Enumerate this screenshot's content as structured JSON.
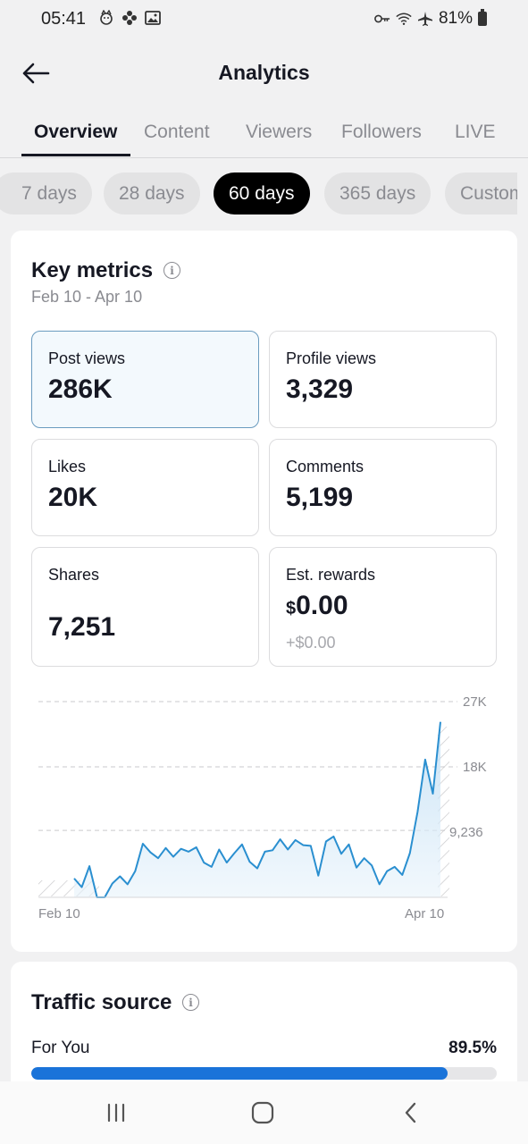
{
  "status_bar": {
    "time": "05:41",
    "battery": "81%",
    "left_icons": [
      "face-notification-icon",
      "flower-icon",
      "gallery-icon"
    ],
    "right_icons": [
      "key-icon",
      "wifi-icon",
      "airplane-icon",
      "battery-icon"
    ]
  },
  "header": {
    "title": "Analytics",
    "back_icon": "arrow-left-icon"
  },
  "tabs": [
    {
      "label": "Overview",
      "active": true
    },
    {
      "label": "Content",
      "active": false
    },
    {
      "label": "Viewers",
      "active": false
    },
    {
      "label": "Followers",
      "active": false
    },
    {
      "label": "LIVE",
      "active": false
    }
  ],
  "periods": [
    {
      "label": "7 days",
      "active": false
    },
    {
      "label": "28 days",
      "active": false
    },
    {
      "label": "60 days",
      "active": true
    },
    {
      "label": "365 days",
      "active": false
    },
    {
      "label": "Custom",
      "active": false
    }
  ],
  "key_metrics": {
    "title": "Key metrics",
    "date_range": "Feb 10 - Apr 10",
    "post_views": {
      "label": "Post views",
      "value": "286K"
    },
    "profile_views": {
      "label": "Profile views",
      "value": "3,329"
    },
    "likes": {
      "label": "Likes",
      "value": "20K"
    },
    "comments": {
      "label": "Comments",
      "value": "5,199"
    },
    "shares": {
      "label": "Shares",
      "value": "7,251"
    },
    "rewards": {
      "label": "Est. rewards",
      "currency": "$",
      "value": "0.00",
      "change": "+$0.00"
    }
  },
  "chart_data": {
    "type": "area",
    "series": [
      {
        "values": [
          2600,
          1400,
          4300,
          0,
          0,
          1900,
          2900,
          1800,
          3600,
          7400,
          6200,
          5400,
          6800,
          5600,
          6700,
          6300,
          6900,
          4800,
          4200,
          6600,
          4800,
          6100,
          7300,
          4900,
          4000,
          6300,
          6500,
          8000,
          6600,
          7900,
          7200,
          7100,
          3000,
          7700,
          8400,
          6000,
          7300,
          4100,
          5400,
          4400,
          1800,
          3600,
          4200,
          3100,
          6100,
          11800,
          19000,
          14300,
          24200
        ]
      }
    ],
    "yticks": [
      "9,236",
      "18K",
      "27K"
    ],
    "ylim": [
      0,
      27000
    ],
    "x_start_label": "Feb 10",
    "x_end_label": "Apr 10",
    "color": "#2a8fd0"
  },
  "traffic_source": {
    "title": "Traffic source",
    "items": [
      {
        "label": "For You",
        "value": "89.5%",
        "fraction": 0.895
      }
    ]
  },
  "nav_bar": {
    "icons": [
      "recent-apps-icon",
      "home-icon",
      "back-icon"
    ]
  }
}
